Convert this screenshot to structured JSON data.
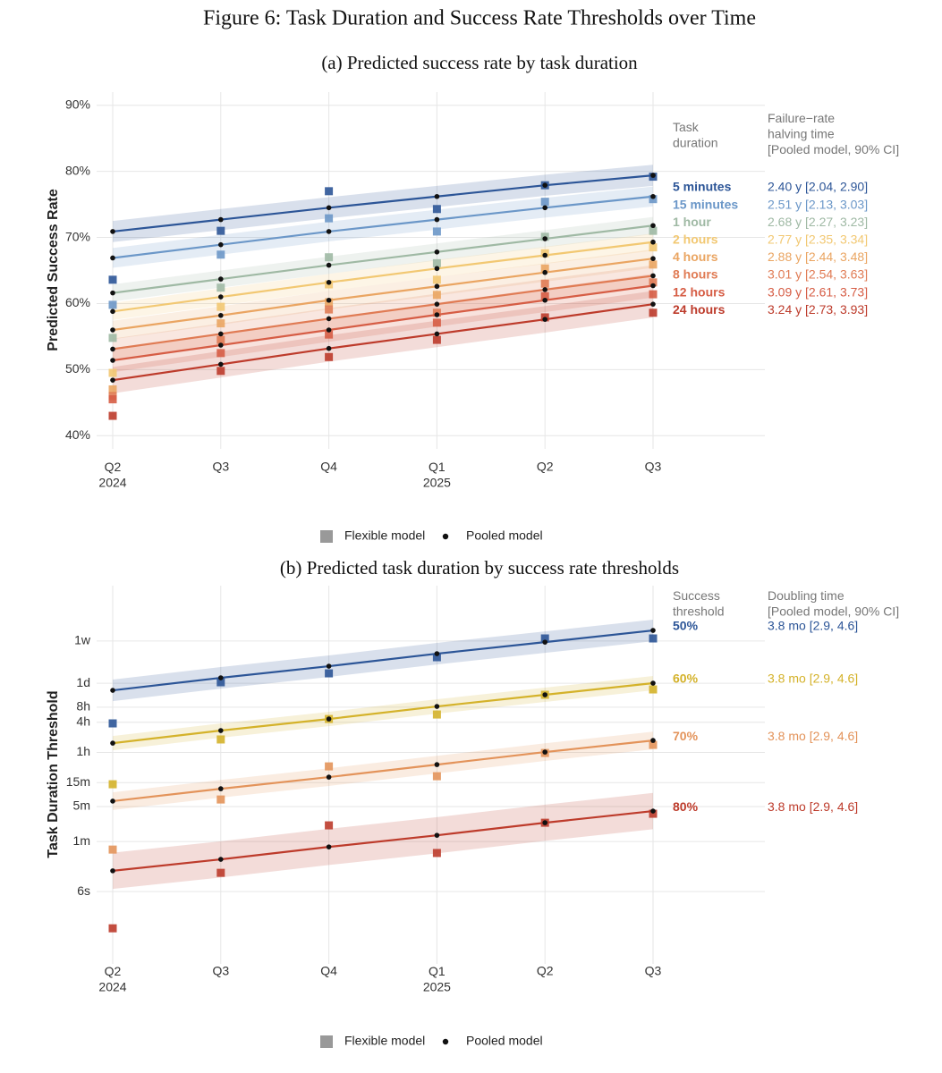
{
  "figure_title": "Figure 6: Task Duration and Success Rate Thresholds over Time",
  "chart_data": [
    {
      "type": "line",
      "title": "(a) Predicted success rate by task duration",
      "y_label": "Predicted Success Rate",
      "categories": [
        "Q2\n2024",
        "Q3",
        "Q4",
        "Q1\n2025",
        "Q2",
        "Q3"
      ],
      "ylim": [
        38,
        92
      ],
      "log_y": false,
      "grid": true,
      "yticks": [
        {
          "value": 40,
          "label": "40%"
        },
        {
          "value": 50,
          "label": "50%"
        },
        {
          "value": 60,
          "label": "60%"
        },
        {
          "value": 70,
          "label": "70%"
        },
        {
          "value": 80,
          "label": "80%"
        },
        {
          "value": 90,
          "label": "90%"
        }
      ],
      "legend_header": "Task\nduration",
      "annotation_header": "Failure−rate\nhalving time\n[Pooled model, 90% CI]",
      "legend": [
        {
          "name": "Flexible model",
          "marker": "square",
          "color": "#999999"
        },
        {
          "name": "Pooled model",
          "marker": "dot",
          "color": "#111111"
        }
      ],
      "series": [
        {
          "name": "5 minutes",
          "color": "#2c5597",
          "values": [
            70.9,
            72.7,
            74.5,
            76.2,
            77.9,
            79.4
          ],
          "flexible_values": [
            63.6,
            71.0,
            77.0,
            74.3,
            77.9,
            79.2
          ],
          "band": 1.6,
          "annotation": "2.40 y [2.04, 2.90]"
        },
        {
          "name": "15 minutes",
          "color": "#6b97c8",
          "values": [
            66.9,
            68.9,
            70.9,
            72.7,
            74.5,
            76.2
          ],
          "flexible_values": [
            59.8,
            67.4,
            72.9,
            70.9,
            75.4,
            75.8
          ],
          "band": 1.5,
          "annotation": "2.51 y [2.13, 3.03]"
        },
        {
          "name": "1 hour",
          "color": "#9fb9a4",
          "values": [
            61.6,
            63.7,
            65.8,
            67.8,
            69.8,
            71.8
          ],
          "flexible_values": [
            54.8,
            62.4,
            67.0,
            66.1,
            70.1,
            71.0
          ],
          "band": 1.3,
          "annotation": "2.68 y [2.27, 3.23]"
        },
        {
          "name": "2 hours",
          "color": "#f2c872",
          "values": [
            58.8,
            61.0,
            63.2,
            65.3,
            67.3,
            69.3
          ],
          "flexible_values": [
            49.5,
            59.5,
            62.9,
            63.6,
            67.6,
            68.5
          ],
          "band": 1.3,
          "annotation": "2.77 y [2.35, 3.34]"
        },
        {
          "name": "4 hours",
          "color": "#eaa562",
          "values": [
            56.0,
            58.2,
            60.5,
            62.6,
            64.7,
            66.8
          ],
          "flexible_values": [
            47.0,
            57.0,
            60.2,
            61.3,
            65.3,
            65.9
          ],
          "band": 1.4,
          "annotation": "2.88 y [2.44, 3.48]"
        },
        {
          "name": "8 hours",
          "color": "#e07b54",
          "values": [
            53.1,
            55.4,
            57.7,
            59.9,
            62.1,
            64.2
          ],
          "flexible_values": [
            46.0,
            54.5,
            59.1,
            58.6,
            63.0,
            63.2
          ],
          "band": 1.6,
          "annotation": "3.01 y [2.54, 3.63]"
        },
        {
          "name": "12 hours",
          "color": "#d65d45",
          "values": [
            51.4,
            53.7,
            56.0,
            58.3,
            60.5,
            62.7
          ],
          "flexible_values": [
            45.5,
            52.5,
            55.3,
            57.1,
            61.1,
            61.4
          ],
          "band": 1.8,
          "annotation": "3.09 y [2.61, 3.73]"
        },
        {
          "name": "24 hours",
          "color": "#bd3b2b",
          "values": [
            48.4,
            50.8,
            53.2,
            55.4,
            57.6,
            59.9
          ],
          "flexible_values": [
            43.0,
            49.8,
            51.9,
            54.5,
            57.9,
            58.6
          ],
          "band": 2.0,
          "annotation": "3.24 y [2.73, 3.93]"
        }
      ]
    },
    {
      "type": "line",
      "title": "(b) Predicted task duration by success rate thresholds",
      "y_label": "Task Duration Threshold",
      "categories": [
        "Q2\n2024",
        "Q3",
        "Q4",
        "Q1\n2025",
        "Q2",
        "Q3"
      ],
      "ylim": [
        0.0036,
        128000
      ],
      "log_y": true,
      "grid": true,
      "yticks": [
        {
          "value": 0.1,
          "label": "6s"
        },
        {
          "value": 1,
          "label": "1m"
        },
        {
          "value": 5,
          "label": "5m"
        },
        {
          "value": 15,
          "label": "15m"
        },
        {
          "value": 60,
          "label": "1h"
        },
        {
          "value": 240,
          "label": "4h"
        },
        {
          "value": 480,
          "label": "8h"
        },
        {
          "value": 1440,
          "label": "1d"
        },
        {
          "value": 10080,
          "label": "1w"
        }
      ],
      "legend_header": "Success\nthreshold",
      "annotation_header": "Doubling time\n[Pooled model, 90% CI]",
      "legend": [
        {
          "name": "Flexible model",
          "marker": "square",
          "color": "#999999"
        },
        {
          "name": "Pooled model",
          "marker": "dot",
          "color": "#111111"
        }
      ],
      "series": [
        {
          "name": "50%",
          "color": "#2c5597",
          "values": [
            1042,
            1853,
            3162,
            5623,
            9550,
            16370
          ],
          "flexible_values": [
            228,
            1510,
            2275,
            4775,
            11320,
            11320
          ],
          "band": 1.64,
          "annotation": "3.8 mo [2.9, 4.6]"
        },
        {
          "name": "60%",
          "color": "#d4b22a",
          "values": [
            92,
            164,
            279,
            497,
            849,
            1449
          ],
          "flexible_values": [
            13.9,
            109,
            279,
            343,
            849,
            1086
          ],
          "band": 1.39,
          "annotation": "3.8 mo [2.9, 4.6]"
        },
        {
          "name": "70%",
          "color": "#e3935a",
          "values": [
            6.4,
            11.3,
            19.3,
            34.3,
            61,
            104
          ],
          "flexible_values": [
            0.69,
            6.9,
            31.6,
            20.1,
            58.6,
            84.9
          ],
          "band": 1.5,
          "annotation": "3.8 mo [2.9, 4.6]"
        },
        {
          "name": "80%",
          "color": "#bd3b2b",
          "values": [
            0.26,
            0.44,
            0.78,
            1.33,
            2.37,
            4.05
          ],
          "flexible_values": [
            0.0185,
            0.237,
            2.1,
            0.59,
            2.37,
            3.58
          ],
          "band": 2.3,
          "annotation": "3.8 mo [2.9, 4.6]"
        }
      ]
    }
  ]
}
